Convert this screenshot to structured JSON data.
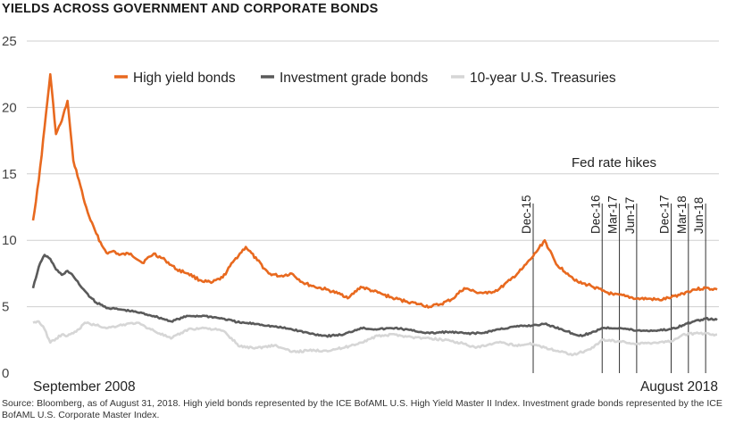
{
  "chart_data": {
    "type": "line",
    "title": "YIELDS ACROSS GOVERNMENT AND CORPORATE BONDS",
    "xlabel": "",
    "ylabel": "",
    "x_tick_labels": [
      "September 2008",
      "August 2018"
    ],
    "x_range": [
      "2008-09",
      "2018-08"
    ],
    "ylim": [
      0,
      25
    ],
    "y_ticks": [
      0,
      5,
      10,
      15,
      20,
      25
    ],
    "grid": "horizontal",
    "legend_position": "top-center",
    "annotation": "Fed rate hikes",
    "events": [
      {
        "label": "Dec-15",
        "x": "2015-12"
      },
      {
        "label": "Dec-16",
        "x": "2016-12"
      },
      {
        "label": "Mar-17",
        "x": "2017-03"
      },
      {
        "label": "Jun-17",
        "x": "2017-06"
      },
      {
        "label": "Dec-17",
        "x": "2017-12"
      },
      {
        "label": "Mar-18",
        "x": "2018-03"
      },
      {
        "label": "Jun-18",
        "x": "2018-06"
      }
    ],
    "series": [
      {
        "name": "High yield bonds",
        "color": "#e8691f",
        "points": [
          [
            "2008-09",
            11.5
          ],
          [
            "2008-10",
            14.5
          ],
          [
            "2008-11",
            18.5
          ],
          [
            "2008-12",
            22.5
          ],
          [
            "2009-01",
            18.0
          ],
          [
            "2009-02",
            19.0
          ],
          [
            "2009-03",
            20.5
          ],
          [
            "2009-04",
            16.0
          ],
          [
            "2009-05",
            14.5
          ],
          [
            "2009-06",
            12.8
          ],
          [
            "2009-07",
            11.5
          ],
          [
            "2009-08",
            10.5
          ],
          [
            "2009-09",
            9.6
          ],
          [
            "2009-10",
            9.0
          ],
          [
            "2009-11",
            9.2
          ],
          [
            "2009-12",
            8.9
          ],
          [
            "2010-02",
            9.0
          ],
          [
            "2010-04",
            8.3
          ],
          [
            "2010-06",
            9.0
          ],
          [
            "2010-08",
            8.5
          ],
          [
            "2010-10",
            7.8
          ],
          [
            "2010-12",
            7.5
          ],
          [
            "2011-02",
            7.0
          ],
          [
            "2011-04",
            6.8
          ],
          [
            "2011-06",
            7.2
          ],
          [
            "2011-08",
            8.5
          ],
          [
            "2011-10",
            9.5
          ],
          [
            "2011-12",
            8.5
          ],
          [
            "2012-02",
            7.5
          ],
          [
            "2012-04",
            7.3
          ],
          [
            "2012-06",
            7.5
          ],
          [
            "2012-08",
            6.8
          ],
          [
            "2012-10",
            6.5
          ],
          [
            "2012-12",
            6.3
          ],
          [
            "2013-02",
            6.0
          ],
          [
            "2013-04",
            5.7
          ],
          [
            "2013-06",
            6.5
          ],
          [
            "2013-08",
            6.2
          ],
          [
            "2013-10",
            5.9
          ],
          [
            "2013-12",
            5.6
          ],
          [
            "2014-02",
            5.4
          ],
          [
            "2014-04",
            5.2
          ],
          [
            "2014-06",
            5.0
          ],
          [
            "2014-08",
            5.2
          ],
          [
            "2014-10",
            5.6
          ],
          [
            "2014-12",
            6.4
          ],
          [
            "2015-02",
            6.1
          ],
          [
            "2015-04",
            6.0
          ],
          [
            "2015-06",
            6.3
          ],
          [
            "2015-08",
            7.0
          ],
          [
            "2015-10",
            7.8
          ],
          [
            "2015-12",
            8.8
          ],
          [
            "2016-02",
            10.0
          ],
          [
            "2016-04",
            8.2
          ],
          [
            "2016-06",
            7.5
          ],
          [
            "2016-08",
            6.8
          ],
          [
            "2016-10",
            6.6
          ],
          [
            "2016-12",
            6.2
          ],
          [
            "2017-02",
            5.9
          ],
          [
            "2017-04",
            5.8
          ],
          [
            "2017-06",
            5.6
          ],
          [
            "2017-08",
            5.6
          ],
          [
            "2017-10",
            5.5
          ],
          [
            "2017-12",
            5.7
          ],
          [
            "2018-02",
            6.0
          ],
          [
            "2018-04",
            6.3
          ],
          [
            "2018-06",
            6.4
          ],
          [
            "2018-08",
            6.3
          ]
        ]
      },
      {
        "name": "Investment grade bonds",
        "color": "#5a5a5a",
        "points": [
          [
            "2008-09",
            6.4
          ],
          [
            "2008-10",
            8.0
          ],
          [
            "2008-11",
            8.9
          ],
          [
            "2008-12",
            8.6
          ],
          [
            "2009-01",
            7.8
          ],
          [
            "2009-02",
            7.4
          ],
          [
            "2009-03",
            7.7
          ],
          [
            "2009-04",
            7.3
          ],
          [
            "2009-05",
            6.7
          ],
          [
            "2009-06",
            6.2
          ],
          [
            "2009-07",
            5.7
          ],
          [
            "2009-08",
            5.3
          ],
          [
            "2009-10",
            4.9
          ],
          [
            "2009-12",
            4.8
          ],
          [
            "2010-03",
            4.6
          ],
          [
            "2010-06",
            4.3
          ],
          [
            "2010-09",
            3.9
          ],
          [
            "2010-12",
            4.3
          ],
          [
            "2011-03",
            4.3
          ],
          [
            "2011-06",
            4.1
          ],
          [
            "2011-09",
            3.8
          ],
          [
            "2011-12",
            3.7
          ],
          [
            "2012-03",
            3.5
          ],
          [
            "2012-06",
            3.3
          ],
          [
            "2012-09",
            3.0
          ],
          [
            "2012-12",
            2.8
          ],
          [
            "2013-03",
            2.9
          ],
          [
            "2013-06",
            3.4
          ],
          [
            "2013-09",
            3.3
          ],
          [
            "2013-12",
            3.4
          ],
          [
            "2014-03",
            3.2
          ],
          [
            "2014-06",
            3.0
          ],
          [
            "2014-09",
            3.1
          ],
          [
            "2014-12",
            3.0
          ],
          [
            "2015-03",
            3.0
          ],
          [
            "2015-06",
            3.3
          ],
          [
            "2015-09",
            3.5
          ],
          [
            "2015-12",
            3.6
          ],
          [
            "2016-02",
            3.7
          ],
          [
            "2016-05",
            3.3
          ],
          [
            "2016-08",
            2.8
          ],
          [
            "2016-10",
            3.0
          ],
          [
            "2016-12",
            3.4
          ],
          [
            "2017-03",
            3.4
          ],
          [
            "2017-06",
            3.2
          ],
          [
            "2017-09",
            3.2
          ],
          [
            "2017-12",
            3.3
          ],
          [
            "2018-02",
            3.6
          ],
          [
            "2018-04",
            3.9
          ],
          [
            "2018-06",
            4.1
          ],
          [
            "2018-08",
            4.0
          ]
        ]
      },
      {
        "name": "10-year U.S. Treasuries",
        "color": "#d6d6d6",
        "points": [
          [
            "2008-09",
            3.8
          ],
          [
            "2008-10",
            3.9
          ],
          [
            "2008-11",
            3.3
          ],
          [
            "2008-12",
            2.3
          ],
          [
            "2009-01",
            2.6
          ],
          [
            "2009-02",
            2.9
          ],
          [
            "2009-03",
            2.8
          ],
          [
            "2009-04",
            3.0
          ],
          [
            "2009-05",
            3.3
          ],
          [
            "2009-06",
            3.8
          ],
          [
            "2009-08",
            3.6
          ],
          [
            "2009-10",
            3.4
          ],
          [
            "2009-12",
            3.6
          ],
          [
            "2010-03",
            3.8
          ],
          [
            "2010-06",
            3.2
          ],
          [
            "2010-09",
            2.6
          ],
          [
            "2010-12",
            3.3
          ],
          [
            "2011-03",
            3.4
          ],
          [
            "2011-06",
            3.2
          ],
          [
            "2011-09",
            2.0
          ],
          [
            "2011-12",
            1.9
          ],
          [
            "2012-03",
            2.1
          ],
          [
            "2012-06",
            1.6
          ],
          [
            "2012-09",
            1.7
          ],
          [
            "2012-12",
            1.7
          ],
          [
            "2013-03",
            1.9
          ],
          [
            "2013-06",
            2.3
          ],
          [
            "2013-09",
            2.8
          ],
          [
            "2013-12",
            2.9
          ],
          [
            "2014-03",
            2.7
          ],
          [
            "2014-06",
            2.6
          ],
          [
            "2014-09",
            2.5
          ],
          [
            "2014-12",
            2.2
          ],
          [
            "2015-02",
            1.9
          ],
          [
            "2015-06",
            2.3
          ],
          [
            "2015-09",
            2.1
          ],
          [
            "2015-12",
            2.2
          ],
          [
            "2016-03",
            1.8
          ],
          [
            "2016-07",
            1.4
          ],
          [
            "2016-10",
            1.8
          ],
          [
            "2016-12",
            2.5
          ],
          [
            "2017-03",
            2.4
          ],
          [
            "2017-06",
            2.2
          ],
          [
            "2017-09",
            2.3
          ],
          [
            "2017-12",
            2.4
          ],
          [
            "2018-02",
            2.9
          ],
          [
            "2018-05",
            3.0
          ],
          [
            "2018-08",
            2.9
          ]
        ]
      }
    ]
  },
  "source_note": "Source: Bloomberg, as of August 31, 2018. High yield bonds represented by the ICE BofAML U.S. High Yield Master II Index. Investment grade bonds represented by the ICE BofAML U.S. Corporate Master Index."
}
